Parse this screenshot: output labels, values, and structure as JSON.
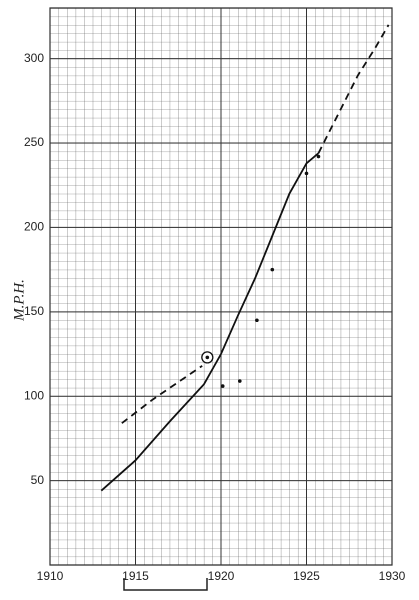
{
  "chart_data": {
    "type": "line",
    "y_label": "M.P.H.",
    "xlim": [
      1910,
      1930
    ],
    "xticks": [
      1910,
      1915,
      1920,
      1925,
      1930
    ],
    "ylim": [
      0,
      330
    ],
    "yticks": [
      50,
      100,
      150,
      200,
      250,
      300
    ],
    "grid": true,
    "series": [
      {
        "color": "#111",
        "dash": false,
        "x": [
          1913,
          1915,
          1917,
          1919,
          1920,
          1921,
          1922,
          1923,
          1924,
          1925,
          1925.7
        ],
        "values": [
          44,
          62,
          85,
          107,
          125,
          148,
          170,
          195,
          220,
          238,
          244
        ]
      },
      {
        "color": "#111",
        "dash": true,
        "x": [
          1925.7,
          1927,
          1928,
          1929,
          1929.8
        ],
        "values": [
          244,
          270,
          290,
          306,
          320
        ]
      },
      {
        "color": "#111",
        "dash": true,
        "x": [
          1914.2,
          1916,
          1918.9
        ],
        "values": [
          84,
          98,
          118
        ]
      }
    ],
    "points": {
      "color": "#111",
      "x": [
        1920.1,
        1921.1,
        1922.1,
        1923,
        1925,
        1925.7
      ],
      "values": [
        106,
        109,
        145,
        175,
        232,
        242
      ]
    },
    "circled_point": {
      "color": "#111",
      "x": 1919.2,
      "value": 123
    }
  }
}
